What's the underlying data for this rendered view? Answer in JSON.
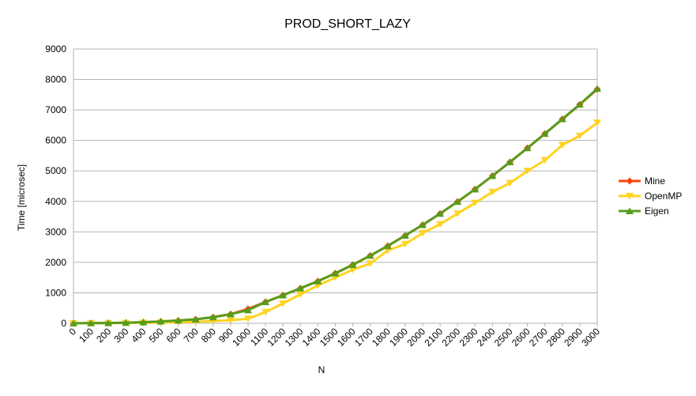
{
  "chart_data": {
    "type": "line",
    "title": "PROD_SHORT_LAZY",
    "xlabel": "N",
    "ylabel": "Time [microsec]",
    "ylim": [
      0,
      9000
    ],
    "yticks": [
      0,
      1000,
      2000,
      3000,
      4000,
      5000,
      6000,
      7000,
      8000,
      9000
    ],
    "grid": "horizontal",
    "legend_position": "right",
    "categories": [
      "0",
      "100",
      "200",
      "300",
      "400",
      "500",
      "600",
      "700",
      "800",
      "900",
      "1000",
      "1100",
      "1200",
      "1300",
      "1400",
      "1500",
      "1600",
      "1700",
      "1800",
      "1900",
      "2000",
      "2100",
      "2200",
      "2300",
      "2400",
      "2500",
      "2600",
      "2700",
      "2800",
      "2900",
      "3000"
    ],
    "series": [
      {
        "name": "Mine",
        "color": "#ff420e",
        "marker": "diamond",
        "values": [
          0,
          5,
          10,
          20,
          35,
          60,
          90,
          130,
          200,
          300,
          470,
          700,
          920,
          1150,
          1380,
          1640,
          1920,
          2220,
          2540,
          2880,
          3230,
          3600,
          3990,
          4400,
          4840,
          5290,
          5750,
          6220,
          6700,
          7180,
          7680
        ]
      },
      {
        "name": "OpenMP",
        "color": "#ffd320",
        "marker": "triangle-down",
        "values": [
          0,
          2,
          5,
          10,
          15,
          25,
          35,
          50,
          70,
          100,
          150,
          370,
          650,
          950,
          1240,
          1500,
          1760,
          1960,
          2390,
          2600,
          2960,
          3250,
          3600,
          3950,
          4310,
          4600,
          5000,
          5350,
          5850,
          6150,
          6580
        ]
      },
      {
        "name": "Eigen",
        "color": "#579d1c",
        "marker": "triangle-up",
        "values": [
          0,
          5,
          10,
          20,
          35,
          60,
          90,
          130,
          200,
          300,
          430,
          700,
          920,
          1150,
          1380,
          1640,
          1920,
          2220,
          2540,
          2880,
          3230,
          3600,
          3990,
          4400,
          4840,
          5290,
          5750,
          6220,
          6700,
          7180,
          7700
        ]
      }
    ]
  }
}
